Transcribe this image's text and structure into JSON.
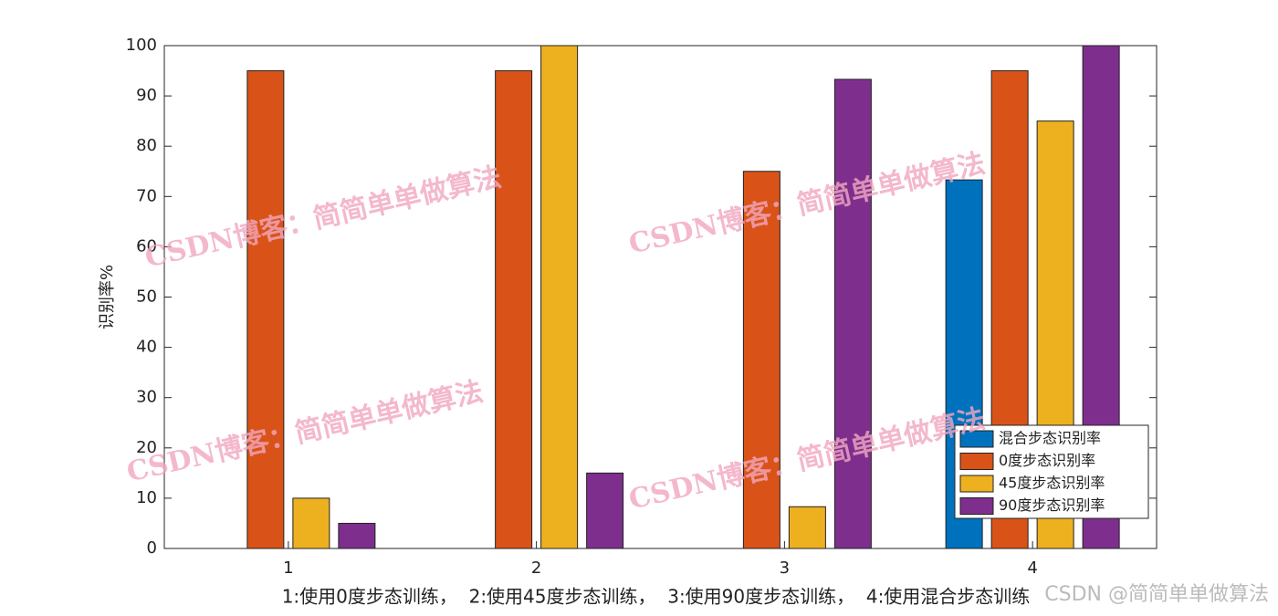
{
  "chart_data": {
    "type": "bar",
    "xlabel": "1:使用0度步态训练，  2:使用45度步态训练，  3:使用90度步态训练，  4:使用混合步态训练",
    "ylabel": "识别率%",
    "categories": [
      "1",
      "2",
      "3",
      "4"
    ],
    "series": [
      {
        "name": "混合步态识别率",
        "color": "#0072bd",
        "values": [
          0,
          0,
          0,
          73.3
        ]
      },
      {
        "name": "0度步态识别率",
        "color": "#d95319",
        "values": [
          95,
          95,
          75,
          95
        ]
      },
      {
        "name": "45度步态识别率",
        "color": "#edb120",
        "values": [
          10,
          100,
          8.3,
          85
        ]
      },
      {
        "name": "90度步态识别率",
        "color": "#7e2f8e",
        "values": [
          5,
          15,
          93.3,
          100
        ]
      }
    ],
    "ylim": [
      0,
      100
    ],
    "yticks": [
      0,
      10,
      20,
      30,
      40,
      50,
      60,
      70,
      80,
      90,
      100
    ],
    "grid": false,
    "legend": "lower right",
    "watermark": "CSDN博客：简简单单做算法",
    "footer_watermark": "CSDN @简简单单做算法"
  }
}
